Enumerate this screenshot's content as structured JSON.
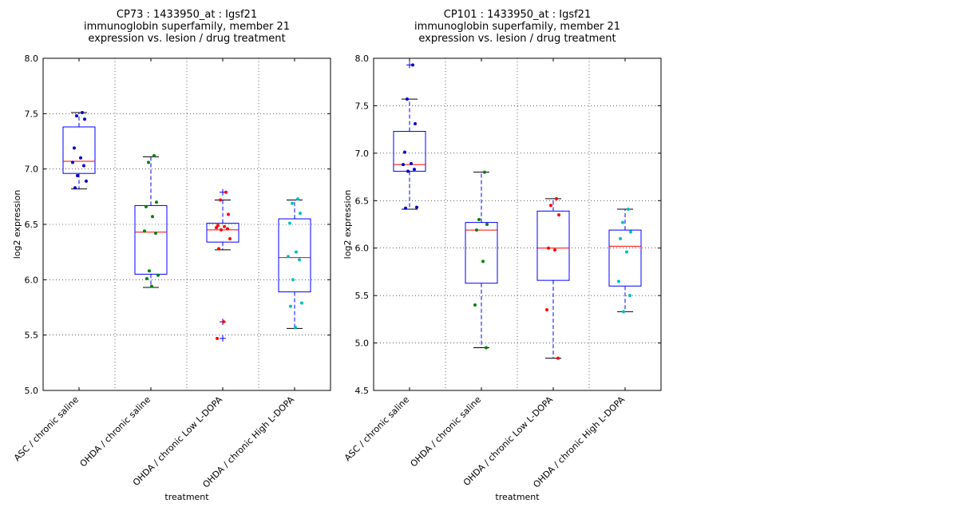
{
  "chart_data": [
    {
      "type": "box",
      "title_lines": [
        "CP73 : 1433950_at : Igsf21",
        "immunoglobin superfamily, member 21",
        "expression vs. lesion / drug treatment"
      ],
      "xlabel": "treatment",
      "ylabel": "log2 expression",
      "ylim": [
        5.0,
        8.0
      ],
      "yticks": [
        "5.0",
        "5.5",
        "6.0",
        "6.5",
        "7.0",
        "7.5",
        "8.0"
      ],
      "grid": true,
      "categories": [
        "ASC / chronic saline",
        "OHDA / chronic saline",
        "OHDA / chronic Low L-DOPA",
        "OHDA / chronic High L-DOPA"
      ],
      "colors": [
        "#0000cc",
        "#008000",
        "#ff0000",
        "#00bfbf"
      ],
      "boxes": [
        {
          "q1": 6.96,
          "median": 7.07,
          "q3": 7.38,
          "whisker_low": 6.82,
          "whisker_high": 7.51,
          "outliers": []
        },
        {
          "q1": 6.05,
          "median": 6.43,
          "q3": 6.67,
          "whisker_low": 5.93,
          "whisker_high": 7.11,
          "outliers": []
        },
        {
          "q1": 6.34,
          "median": 6.45,
          "q3": 6.51,
          "whisker_low": 6.27,
          "whisker_high": 6.72,
          "outliers": [
            6.79,
            5.62,
            5.47
          ]
        },
        {
          "q1": 5.89,
          "median": 6.2,
          "q3": 6.55,
          "whisker_low": 5.56,
          "whisker_high": 6.72,
          "outliers": []
        }
      ],
      "points": [
        [
          7.51,
          7.48,
          7.45,
          7.19,
          7.1,
          7.06,
          7.03,
          6.94,
          6.89,
          6.83
        ],
        [
          7.12,
          7.06,
          6.7,
          6.66,
          6.57,
          6.44,
          6.42,
          6.08,
          6.04,
          6.01,
          5.94
        ],
        [
          6.79,
          6.72,
          6.59,
          6.49,
          6.48,
          6.47,
          6.46,
          6.45,
          6.37,
          6.28,
          5.62,
          5.47
        ],
        [
          6.73,
          6.69,
          6.6,
          6.51,
          6.25,
          6.21,
          6.18,
          6.0,
          5.79,
          5.76,
          5.57
        ]
      ]
    },
    {
      "type": "box",
      "title_lines": [
        "CP101 : 1433950_at : Igsf21",
        "immunoglobin superfamily, member 21",
        "expression vs. lesion / drug treatment"
      ],
      "xlabel": "treatment",
      "ylabel": "log2 expression",
      "ylim": [
        4.5,
        8.0
      ],
      "yticks": [
        "4.5",
        "5.0",
        "5.5",
        "6.0",
        "6.5",
        "7.0",
        "7.5",
        "8.0"
      ],
      "grid": true,
      "categories": [
        "ASC / chronic saline",
        "OHDA / chronic saline",
        "OHDA / chronic Low L-DOPA",
        "OHDA / chronic High L-DOPA"
      ],
      "colors": [
        "#0000cc",
        "#008000",
        "#ff0000",
        "#00bfbf"
      ],
      "boxes": [
        {
          "q1": 6.81,
          "median": 6.88,
          "q3": 7.23,
          "whisker_low": 6.41,
          "whisker_high": 7.57,
          "outliers": [
            7.93
          ]
        },
        {
          "q1": 5.63,
          "median": 6.19,
          "q3": 6.27,
          "whisker_low": 4.95,
          "whisker_high": 6.8,
          "outliers": []
        },
        {
          "q1": 5.66,
          "median": 6.0,
          "q3": 6.39,
          "whisker_low": 4.84,
          "whisker_high": 6.52,
          "outliers": []
        },
        {
          "q1": 5.6,
          "median": 6.02,
          "q3": 6.19,
          "whisker_low": 5.33,
          "whisker_high": 6.41,
          "outliers": []
        }
      ],
      "points": [
        [
          7.93,
          7.57,
          7.31,
          7.01,
          6.89,
          6.88,
          6.83,
          6.81,
          6.43,
          6.42
        ],
        [
          6.8,
          6.3,
          6.25,
          6.19,
          5.86,
          5.4,
          4.95
        ],
        [
          6.52,
          6.45,
          6.35,
          6.0,
          5.98,
          5.35,
          4.84
        ],
        [
          6.41,
          6.27,
          6.17,
          6.1,
          5.96,
          5.65,
          5.5,
          5.33
        ]
      ]
    }
  ]
}
